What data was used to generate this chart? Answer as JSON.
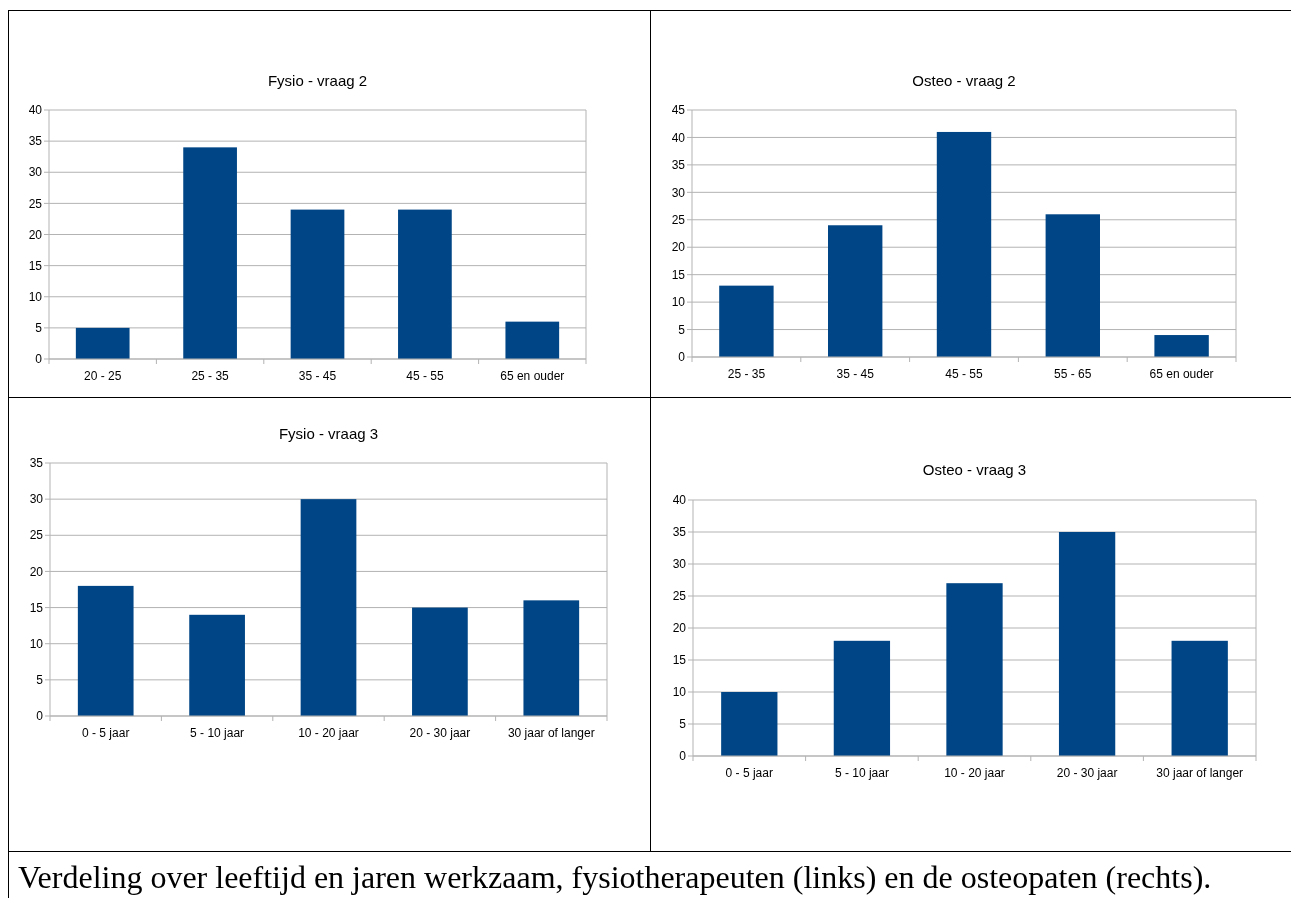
{
  "chart_data": [
    {
      "type": "bar",
      "title": "Fysio - vraag 2",
      "categories": [
        "20 - 25",
        "25 - 35",
        "35 - 45",
        "45 - 55",
        "65 en ouder"
      ],
      "values": [
        5,
        34,
        24,
        24,
        6
      ],
      "color": "#004586",
      "ylim": [
        0,
        40
      ],
      "yticks": [
        0,
        5,
        10,
        15,
        20,
        25,
        30,
        35,
        40
      ],
      "grid": "y"
    },
    {
      "type": "bar",
      "title": "Osteo - vraag 2",
      "categories": [
        "25 - 35",
        "35 - 45",
        "45 - 55",
        "55 - 65",
        "65 en ouder"
      ],
      "values": [
        13,
        24,
        41,
        26,
        4
      ],
      "color": "#004586",
      "ylim": [
        0,
        45
      ],
      "yticks": [
        0,
        5,
        10,
        15,
        20,
        25,
        30,
        35,
        40,
        45
      ],
      "grid": "y"
    },
    {
      "type": "bar",
      "title": "Fysio - vraag 3",
      "categories": [
        "0 - 5 jaar",
        "5 - 10 jaar",
        "10 - 20 jaar",
        "20 - 30 jaar",
        "30 jaar of langer"
      ],
      "values": [
        18,
        14,
        30,
        15,
        16
      ],
      "color": "#004586",
      "ylim": [
        0,
        35
      ],
      "yticks": [
        0,
        5,
        10,
        15,
        20,
        25,
        30,
        35
      ],
      "grid": "y"
    },
    {
      "type": "bar",
      "title": "Osteo - vraag 3",
      "categories": [
        "0 - 5 jaar",
        "5 - 10 jaar",
        "10 - 20 jaar",
        "20 - 30 jaar",
        "30 jaar of langer"
      ],
      "values": [
        10,
        18,
        27,
        35,
        18
      ],
      "color": "#004586",
      "ylim": [
        0,
        40
      ],
      "yticks": [
        0,
        5,
        10,
        15,
        20,
        25,
        30,
        35,
        40
      ],
      "grid": "y"
    },
    {
      "type": "other",
      "annotations": [
        "Verdeling over leeftijd en jaren werkzaam, fysiotherapeuten (links) en de osteopaten (rechts)."
      ]
    }
  ]
}
